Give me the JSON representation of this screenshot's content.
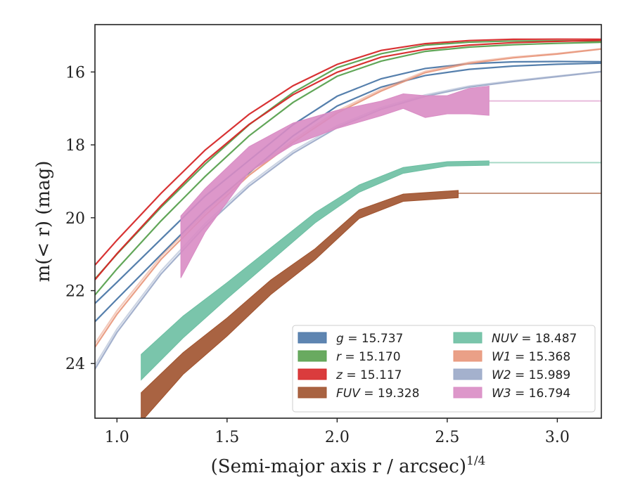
{
  "chart_data": {
    "type": "line",
    "xlabel": "(Semi-major axis r / arcsec)",
    "xlabel_exponent": "1/4",
    "ylabel": "m(< r) (mag)",
    "xlim": [
      0.9,
      3.2
    ],
    "ylim": [
      25.5,
      14.7
    ],
    "y_inverted": true,
    "x_ticks": [
      "1.0",
      "1.5",
      "2.0",
      "2.5",
      "3.0"
    ],
    "y_ticks": [
      "16",
      "18",
      "20",
      "22",
      "24"
    ],
    "grid": false,
    "legend_position": "lower-right",
    "series": [
      {
        "name": "g = 15.737",
        "band": "g",
        "value": "15.737",
        "color": "#4c78a8",
        "style": "line",
        "x": [
          0.9,
          1.0,
          1.2,
          1.4,
          1.6,
          1.8,
          2.0,
          2.2,
          2.4,
          2.6,
          2.8,
          3.0,
          3.2
        ],
        "y": [
          22.6,
          22.0,
          20.8,
          19.6,
          18.6,
          17.6,
          16.8,
          16.3,
          16.0,
          15.85,
          15.78,
          15.75,
          15.737
        ],
        "spread": 0.25
      },
      {
        "name": "r = 15.170",
        "band": "r",
        "value": "15.170",
        "color": "#59a14f",
        "style": "line",
        "x": [
          0.9,
          1.0,
          1.2,
          1.4,
          1.6,
          1.8,
          2.0,
          2.2,
          2.4,
          2.6,
          2.8,
          3.0,
          3.2
        ],
        "y": [
          21.9,
          21.2,
          19.9,
          18.7,
          17.6,
          16.7,
          16.0,
          15.6,
          15.35,
          15.25,
          15.2,
          15.18,
          15.17
        ],
        "spread": 0.22
      },
      {
        "name": "z = 15.117",
        "band": "z",
        "value": "15.117",
        "color": "#d62728",
        "style": "line",
        "x": [
          0.9,
          1.0,
          1.2,
          1.4,
          1.6,
          1.8,
          2.0,
          2.2,
          2.4,
          2.6,
          2.8,
          3.0,
          3.2
        ],
        "y": [
          21.5,
          20.8,
          19.5,
          18.3,
          17.3,
          16.5,
          15.9,
          15.5,
          15.3,
          15.2,
          15.15,
          15.13,
          15.117
        ],
        "spread": 0.2
      },
      {
        "name": "FUV = 19.328",
        "band": "FUV",
        "value": "19.328",
        "color": "#a0522d",
        "style": "band",
        "x": [
          1.11,
          1.3,
          1.5,
          1.7,
          1.9,
          2.1,
          2.3,
          2.55
        ],
        "y": [
          25.2,
          24.0,
          23.0,
          21.9,
          21.0,
          19.9,
          19.45,
          19.35
        ],
        "halfwidth": [
          0.4,
          0.3,
          0.25,
          0.2,
          0.15,
          0.12,
          0.1,
          0.1
        ],
        "extend_to": 3.2,
        "extend_y": 19.328
      },
      {
        "name": "NUV = 18.487",
        "band": "NUV",
        "value": "18.487",
        "color": "#6cbfa2",
        "style": "band",
        "x": [
          1.11,
          1.3,
          1.5,
          1.7,
          1.9,
          2.1,
          2.3,
          2.5,
          2.69
        ],
        "y": [
          24.1,
          23.0,
          22.0,
          21.0,
          20.0,
          19.2,
          18.7,
          18.52,
          18.5
        ],
        "halfwidth": [
          0.35,
          0.3,
          0.22,
          0.18,
          0.14,
          0.1,
          0.08,
          0.06,
          0.06
        ],
        "extend_to": 3.2,
        "extend_y": 18.487
      },
      {
        "name": "W1 = 15.368",
        "band": "W1",
        "value": "15.368",
        "color": "#e8967a",
        "style": "line",
        "x": [
          0.9,
          1.0,
          1.2,
          1.4,
          1.6,
          1.8,
          2.0,
          2.2,
          2.4,
          2.6,
          2.8,
          3.0,
          3.2
        ],
        "y": [
          23.5,
          22.6,
          21.1,
          19.9,
          18.8,
          17.9,
          17.1,
          16.5,
          16.0,
          15.75,
          15.6,
          15.5,
          15.368
        ],
        "spread": 0.05
      },
      {
        "name": "W2 = 15.989",
        "band": "W2",
        "value": "15.989",
        "color": "#9aa9c8",
        "style": "line",
        "x": [
          0.9,
          1.0,
          1.2,
          1.4,
          1.6,
          1.8,
          2.0,
          2.2,
          2.4,
          2.6,
          2.8,
          3.0,
          3.2
        ],
        "y": [
          24.1,
          23.1,
          21.5,
          20.2,
          19.1,
          18.2,
          17.5,
          17.0,
          16.65,
          16.4,
          16.25,
          16.12,
          15.989
        ],
        "spread": 0.05
      },
      {
        "name": "W3 = 16.794",
        "band": "W3",
        "value": "16.794",
        "color": "#d98cc4",
        "style": "band",
        "x": [
          1.29,
          1.4,
          1.6,
          1.8,
          2.0,
          2.2,
          2.3,
          2.4,
          2.5,
          2.6,
          2.69
        ],
        "y": [
          20.8,
          19.8,
          18.4,
          17.7,
          17.3,
          17.0,
          16.8,
          16.95,
          16.9,
          16.8,
          16.79
        ],
        "halfwidth": [
          0.85,
          0.6,
          0.35,
          0.3,
          0.25,
          0.2,
          0.2,
          0.3,
          0.25,
          0.35,
          0.4
        ],
        "extend_to": 3.2,
        "extend_y": 16.794
      }
    ]
  }
}
